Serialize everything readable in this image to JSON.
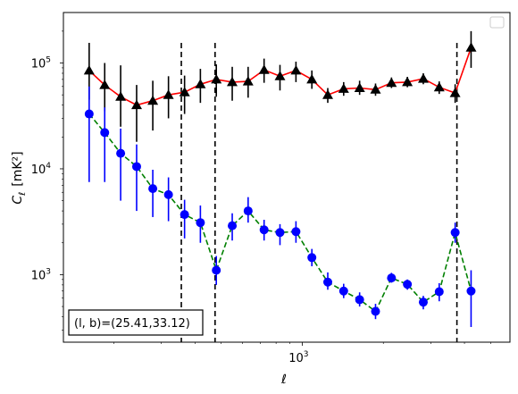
{
  "chart_data": {
    "type": "scatter",
    "title": "",
    "xlabel": "ℓ",
    "ylabel_main": "C",
    "ylabel_sub": "ℓ",
    "ylabel_unit": "[mK²]",
    "xscale": "log",
    "yscale": "log",
    "xlim": [
      130,
      5900
    ],
    "ylim": [
      230,
      300000
    ],
    "x_tick_labels": [
      {
        "value": 1000,
        "base": "10",
        "exp": "3"
      }
    ],
    "y_tick_labels": [
      {
        "value": 1000,
        "base": "10",
        "exp": "3"
      },
      {
        "value": 10000,
        "base": "10",
        "exp": "4"
      },
      {
        "value": 100000,
        "base": "10",
        "exp": "5"
      }
    ],
    "annotation": "(l, b)=(25.41,33.12)",
    "legend": "top-right (empty)",
    "vlines": [
      356,
      475,
      3750
    ],
    "series": [
      {
        "marker": "triangle",
        "color": "#000000",
        "line_color": "#ff0000",
        "line_style": "solid",
        "points": [
          {
            "x": 162,
            "y": 85000,
            "lo": 45000,
            "hi": 155000
          },
          {
            "x": 185,
            "y": 62000,
            "lo": 35000,
            "hi": 100000
          },
          {
            "x": 212,
            "y": 48000,
            "lo": 25000,
            "hi": 95000
          },
          {
            "x": 243,
            "y": 40000,
            "lo": 18000,
            "hi": 62000
          },
          {
            "x": 279,
            "y": 44000,
            "lo": 23000,
            "hi": 68000
          },
          {
            "x": 319,
            "y": 50000,
            "lo": 30000,
            "hi": 75000
          },
          {
            "x": 366,
            "y": 53000,
            "lo": 33000,
            "hi": 76000
          },
          {
            "x": 419,
            "y": 63000,
            "lo": 42000,
            "hi": 88000
          },
          {
            "x": 480,
            "y": 70000,
            "lo": 48000,
            "hi": 97000
          },
          {
            "x": 550,
            "y": 66000,
            "lo": 44000,
            "hi": 92000
          },
          {
            "x": 630,
            "y": 67000,
            "lo": 47000,
            "hi": 92000
          },
          {
            "x": 722,
            "y": 86000,
            "lo": 65000,
            "hi": 110000
          },
          {
            "x": 827,
            "y": 75000,
            "lo": 55000,
            "hi": 96000
          },
          {
            "x": 948,
            "y": 85000,
            "lo": 66000,
            "hi": 103000
          },
          {
            "x": 1086,
            "y": 70000,
            "lo": 57000,
            "hi": 85000
          },
          {
            "x": 1244,
            "y": 50000,
            "lo": 42000,
            "hi": 58000
          },
          {
            "x": 1425,
            "y": 57000,
            "lo": 49000,
            "hi": 66000
          },
          {
            "x": 1633,
            "y": 58000,
            "lo": 50000,
            "hi": 68000
          },
          {
            "x": 1871,
            "y": 56000,
            "lo": 49000,
            "hi": 64000
          },
          {
            "x": 2144,
            "y": 65000,
            "lo": 58000,
            "hi": 73000
          },
          {
            "x": 2456,
            "y": 66000,
            "lo": 59000,
            "hi": 74000
          },
          {
            "x": 2814,
            "y": 71000,
            "lo": 63000,
            "hi": 80000
          },
          {
            "x": 3224,
            "y": 59000,
            "lo": 51000,
            "hi": 67000
          },
          {
            "x": 3694,
            "y": 52000,
            "lo": 42000,
            "hi": 63000
          },
          {
            "x": 4232,
            "y": 140000,
            "lo": 90000,
            "hi": 200000
          }
        ]
      },
      {
        "marker": "circle",
        "color": "#0000ff",
        "line_color": "#008000",
        "line_style": "dashed",
        "points": [
          {
            "x": 162,
            "y": 33000,
            "lo": 7500,
            "hi": 60000
          },
          {
            "x": 185,
            "y": 22000,
            "lo": 7500,
            "hi": 38000
          },
          {
            "x": 212,
            "y": 14000,
            "lo": 5000,
            "hi": 24000
          },
          {
            "x": 243,
            "y": 10500,
            "lo": 4000,
            "hi": 17000
          },
          {
            "x": 279,
            "y": 6500,
            "lo": 3500,
            "hi": 9800
          },
          {
            "x": 319,
            "y": 5700,
            "lo": 3200,
            "hi": 8300
          },
          {
            "x": 366,
            "y": 3700,
            "lo": 2200,
            "hi": 5100
          },
          {
            "x": 419,
            "y": 3100,
            "lo": 2000,
            "hi": 4500
          },
          {
            "x": 480,
            "y": 1100,
            "lo": 800,
            "hi": 1500
          },
          {
            "x": 550,
            "y": 2900,
            "lo": 2100,
            "hi": 3800
          },
          {
            "x": 630,
            "y": 4000,
            "lo": 3100,
            "hi": 5400
          },
          {
            "x": 722,
            "y": 2650,
            "lo": 2100,
            "hi": 3300
          },
          {
            "x": 827,
            "y": 2500,
            "lo": 1900,
            "hi": 3000
          },
          {
            "x": 948,
            "y": 2550,
            "lo": 2000,
            "hi": 3200
          },
          {
            "x": 1086,
            "y": 1450,
            "lo": 1200,
            "hi": 1750
          },
          {
            "x": 1244,
            "y": 850,
            "lo": 720,
            "hi": 1050
          },
          {
            "x": 1425,
            "y": 700,
            "lo": 600,
            "hi": 820
          },
          {
            "x": 1633,
            "y": 580,
            "lo": 500,
            "hi": 680
          },
          {
            "x": 1871,
            "y": 450,
            "lo": 380,
            "hi": 530
          },
          {
            "x": 2144,
            "y": 930,
            "lo": 840,
            "hi": 1040
          },
          {
            "x": 2456,
            "y": 810,
            "lo": 720,
            "hi": 900
          },
          {
            "x": 2814,
            "y": 550,
            "lo": 470,
            "hi": 630
          },
          {
            "x": 3224,
            "y": 690,
            "lo": 560,
            "hi": 830
          },
          {
            "x": 3694,
            "y": 2500,
            "lo": 2000,
            "hi": 3100
          },
          {
            "x": 4232,
            "y": 700,
            "lo": 320,
            "hi": 1100
          }
        ]
      }
    ]
  }
}
